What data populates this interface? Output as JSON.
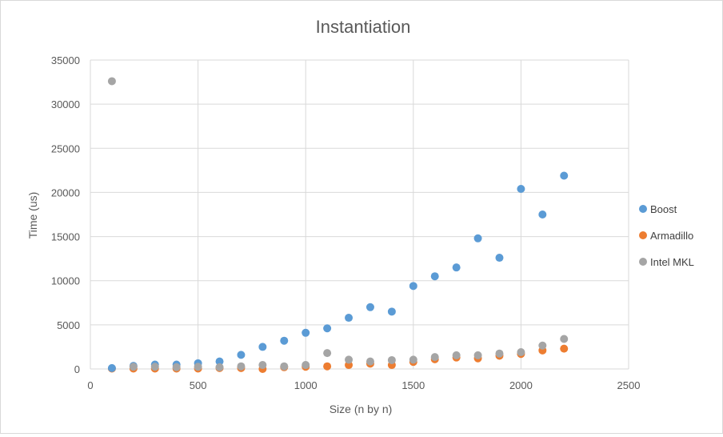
{
  "chart_data": {
    "type": "scatter",
    "title": "Instantiation",
    "xlabel": "Size (n by n)",
    "ylabel": "Time (us)",
    "xlim": [
      0,
      2500
    ],
    "ylim": [
      0,
      35000
    ],
    "x_ticks": [
      0,
      500,
      1000,
      1500,
      2000,
      2500
    ],
    "y_ticks": [
      0,
      5000,
      10000,
      15000,
      20000,
      25000,
      30000,
      35000
    ],
    "grid": true,
    "legend_position": "right",
    "x": [
      100,
      200,
      300,
      400,
      500,
      600,
      700,
      800,
      900,
      1000,
      1100,
      1200,
      1300,
      1400,
      1500,
      1600,
      1700,
      1800,
      1900,
      2000,
      2100,
      2200
    ],
    "series": [
      {
        "name": "Boost",
        "color": "#5b9bd5",
        "values": [
          100,
          350,
          500,
          500,
          650,
          850,
          1600,
          2500,
          3200,
          4100,
          4600,
          5800,
          7000,
          6500,
          9400,
          10500,
          11500,
          14800,
          12600,
          20400,
          17500,
          21900
        ]
      },
      {
        "name": "Armadillo",
        "color": "#ed7d31",
        "values": [
          50,
          50,
          50,
          50,
          50,
          100,
          100,
          0,
          200,
          250,
          300,
          450,
          600,
          450,
          800,
          1100,
          1300,
          1200,
          1500,
          1700,
          2100,
          2300
        ]
      },
      {
        "name": "Intel MKL",
        "color": "#a5a5a5",
        "values": [
          32600,
          250,
          250,
          200,
          250,
          200,
          300,
          450,
          300,
          450,
          1800,
          1050,
          850,
          1000,
          1050,
          1350,
          1550,
          1550,
          1750,
          1900,
          2650,
          3400
        ]
      }
    ]
  }
}
